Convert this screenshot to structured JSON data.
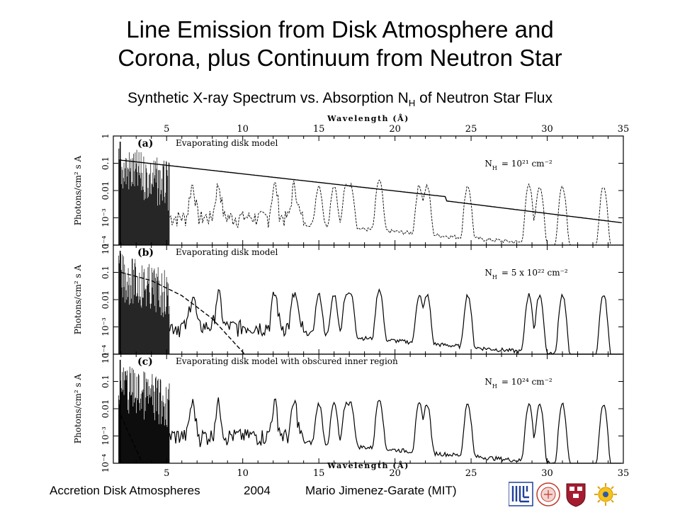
{
  "slide": {
    "title_line1": "Line Emission from Disk Atmosphere and",
    "title_line2": "Corona, plus Continuum from Neutron Star",
    "subtitle_pre": "Synthetic X-ray Spectrum vs. Absorption N",
    "subtitle_sub": "H",
    "subtitle_post": " of Neutron Star Flux"
  },
  "footer": {
    "left": "Accretion Disk Atmospheres",
    "center": "2004",
    "right": "Mario Jimenez-Garate (MIT)"
  },
  "logos": [
    "mit-logo",
    "university-seal",
    "harvard-shield",
    "sun-emblem"
  ],
  "chart_data": {
    "type": "line",
    "xlabel": "Wavelength (Å)",
    "ylabel": "Photons/cm² s A",
    "xlim": [
      1.5,
      35
    ],
    "x_ticks": [
      5,
      10,
      15,
      20,
      25,
      30,
      35
    ],
    "ylim_log10": [
      -4,
      0
    ],
    "y_tick_labels": [
      "1",
      "0.1",
      "0.01",
      "10⁻³",
      "10⁻⁴"
    ],
    "emission_lines_angstrom": [
      1.9,
      2.1,
      6.7,
      8.4,
      12.1,
      13.4,
      15.0,
      16.0,
      16.8,
      17.1,
      18.97,
      21.6,
      22.1,
      24.78,
      28.8,
      29.5,
      31.0,
      33.7
    ],
    "panels": [
      {
        "label": "(a)",
        "model": "Evaporating disk model",
        "nh_value": "10²¹ cm⁻²",
        "continuum": {
          "x": [
            2,
            23.3,
            23.31,
            35
          ],
          "y": [
            0.13,
            0.006,
            0.0042,
            0.00065
          ]
        },
        "emission_baseline": {
          "x": [
            14,
            35
          ],
          "y": [
            0.0006,
            6e-05
          ]
        }
      },
      {
        "label": "(b)",
        "model": "Evaporating disk model",
        "nh_value": "5 x 10²² cm⁻²",
        "continuum": {
          "x": [
            2,
            4,
            6,
            8,
            10,
            12
          ],
          "y": [
            0.1,
            0.05,
            0.014,
            0.002,
            0.00012,
            5e-06
          ]
        },
        "emission_baseline": {
          "x": [
            14,
            35
          ],
          "y": [
            0.0006,
            6e-05
          ]
        }
      },
      {
        "label": "(c)",
        "model": "Evaporating disk model with obscured inner region",
        "nh_value": "10²⁴ cm⁻²",
        "continuum": {
          "x": [
            1.8,
            2.6,
            3.4,
            4.4
          ],
          "y": [
            0.01,
            0.001,
            0.0001,
            1e-05
          ]
        },
        "emission_baseline": {
          "x": [
            14,
            35
          ],
          "y": [
            0.0006,
            6e-05
          ]
        }
      }
    ]
  }
}
